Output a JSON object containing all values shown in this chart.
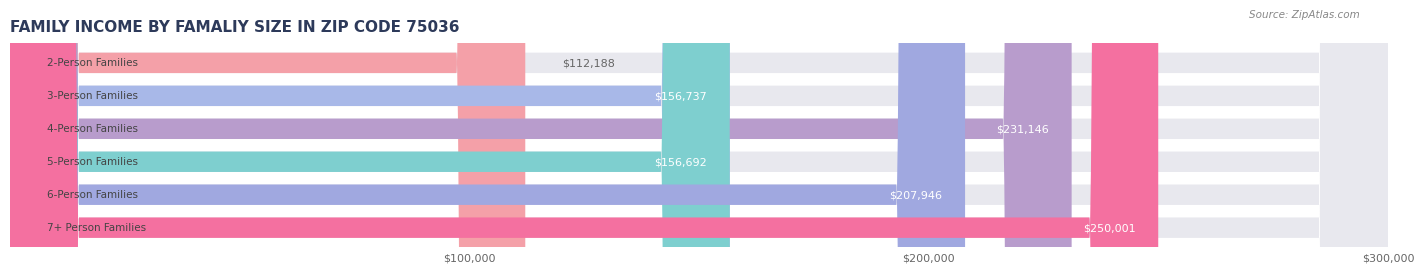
{
  "title": "FAMILY INCOME BY FAMALIY SIZE IN ZIP CODE 75036",
  "source": "Source: ZipAtlas.com",
  "categories": [
    "2-Person Families",
    "3-Person Families",
    "4-Person Families",
    "5-Person Families",
    "6-Person Families",
    "7+ Person Families"
  ],
  "values": [
    112188,
    156737,
    231146,
    156692,
    207946,
    250001
  ],
  "labels": [
    "$112,188",
    "$156,737",
    "$231,146",
    "$156,692",
    "$207,946",
    "$250,001"
  ],
  "bar_colors": [
    "#f4a0a8",
    "#a8b8e8",
    "#b89ccc",
    "#7ecfcf",
    "#a0a8e0",
    "#f470a0"
  ],
  "bar_bg_color": "#f0f0f0",
  "background_color": "#ffffff",
  "xlim": [
    0,
    300000
  ],
  "xticks": [
    100000,
    200000,
    300000
  ],
  "xtick_labels": [
    "$100,000",
    "$200,000",
    "$300,000"
  ],
  "title_color": "#2d3a5a",
  "title_fontsize": 11,
  "bar_height": 0.62,
  "label_color_inside": "#ffffff",
  "label_color_outside": "#555555",
  "label_fontsize": 8,
  "category_fontsize": 7.5,
  "category_color": "#444444"
}
